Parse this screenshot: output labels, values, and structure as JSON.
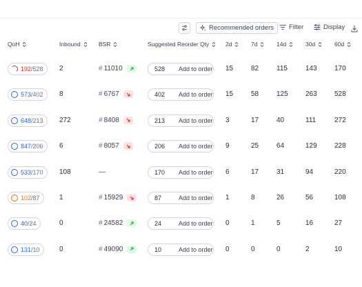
{
  "toolbar": {
    "recommended_label": "Recommended orders",
    "filter_label": "Filter",
    "display_label": "Display"
  },
  "columns": {
    "qoh": "QoH",
    "inbound": "Inbound",
    "bsr": "BSR",
    "suggested": "Suggested Reorder Qty",
    "d2": "2d",
    "d7": "7d",
    "d14": "14d",
    "d30": "30d",
    "d60": "60d"
  },
  "add_label": "Add to order",
  "colors": {
    "blue": "#2563eb",
    "red": "#dc2626",
    "orange": "#d97706",
    "trend_up": "#16a34a",
    "trend_down": "#dc2626"
  },
  "rows": [
    {
      "qoh_num": "192",
      "qoh_den": "/528",
      "status": "red",
      "inbound": "2",
      "bsr": "11010",
      "trend": "up",
      "suggested": "528",
      "d2": "15",
      "d7": "82",
      "d14": "115",
      "d30": "143",
      "d60": "170"
    },
    {
      "qoh_num": "573",
      "qoh_den": "/402",
      "status": "blue",
      "inbound": "8",
      "bsr": "6767",
      "trend": "down",
      "suggested": "402",
      "d2": "15",
      "d7": "58",
      "d14": "125",
      "d30": "263",
      "d60": "528"
    },
    {
      "qoh_num": "648",
      "qoh_den": "/213",
      "status": "blue",
      "inbound": "272",
      "bsr": "8408",
      "trend": "down",
      "suggested": "213",
      "d2": "3",
      "d7": "17",
      "d14": "40",
      "d30": "111",
      "d60": "272"
    },
    {
      "qoh_num": "847",
      "qoh_den": "/206",
      "status": "blue",
      "inbound": "6",
      "bsr": "8057",
      "trend": "down",
      "suggested": "206",
      "d2": "9",
      "d7": "25",
      "d14": "64",
      "d30": "129",
      "d60": "228"
    },
    {
      "qoh_num": "533",
      "qoh_den": "/170",
      "status": "blue",
      "inbound": "108",
      "bsr": "",
      "bsr_empty": "—",
      "trend": "",
      "suggested": "170",
      "d2": "6",
      "d7": "17",
      "d14": "31",
      "d30": "94",
      "d60": "220"
    },
    {
      "qoh_num": "102",
      "qoh_den": "/87",
      "status": "orange",
      "inbound": "1",
      "bsr": "15929",
      "trend": "down",
      "suggested": "87",
      "d2": "1",
      "d7": "8",
      "d14": "26",
      "d30": "56",
      "d60": "108"
    },
    {
      "qoh_num": "40",
      "qoh_den": "/24",
      "status": "blue",
      "inbound": "0",
      "bsr": "24582",
      "trend": "up",
      "suggested": "24",
      "d2": "0",
      "d7": "1",
      "d14": "5",
      "d30": "16",
      "d60": "27"
    },
    {
      "qoh_num": "131",
      "qoh_den": "/10",
      "status": "blue",
      "inbound": "0",
      "bsr": "49090",
      "trend": "up",
      "suggested": "10",
      "d2": "0",
      "d7": "0",
      "d14": "0",
      "d30": "2",
      "d60": "10"
    }
  ]
}
